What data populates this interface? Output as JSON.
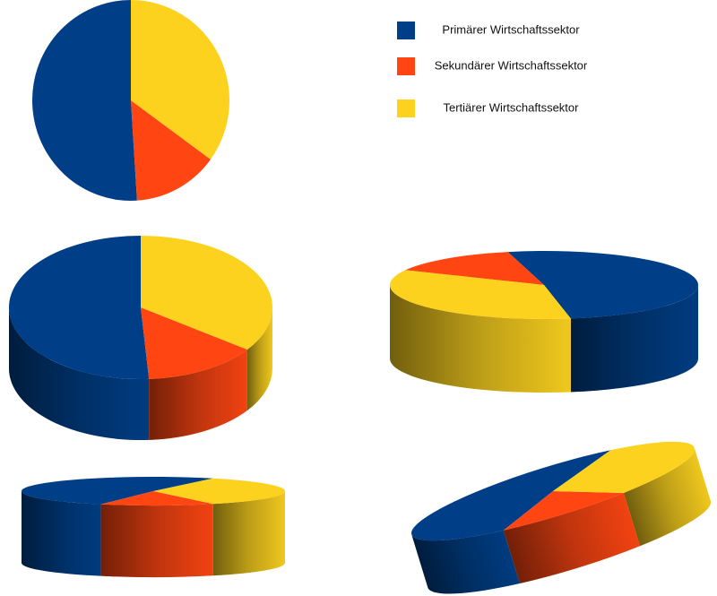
{
  "chart_data": {
    "type": "pie",
    "categories": [
      "Primärer Wirtschaftssektor",
      "Sekundärer Wirtschaftssektor",
      "Tertiärer Wirtschaftssektor"
    ],
    "values": [
      51,
      14,
      35
    ],
    "colors": [
      "#003f87",
      "#ff4612",
      "#fcd21f"
    ],
    "legend": "top-right"
  }
}
